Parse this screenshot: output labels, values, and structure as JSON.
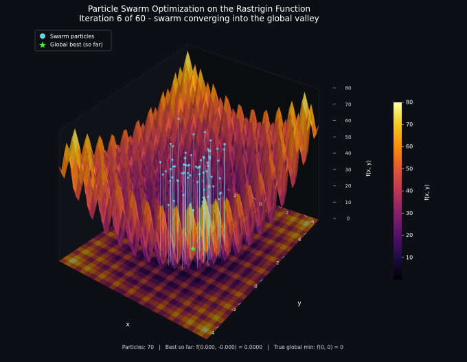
{
  "title_line1": "Particle Swarm Optimization on the Rastrigin Function",
  "title_line2": "Iteration 6 of 60 - swarm converging into the global valley",
  "legend": {
    "position": "top-left",
    "items": [
      {
        "label": "Swarm particles",
        "color": "#5ad8f0",
        "marker": "circle"
      },
      {
        "label": "Global best (so far)",
        "color": "#4cf03a",
        "marker": "star"
      }
    ]
  },
  "footer": "Particles: 70   |   Best so far: f(0.000, -0.000) = 0.0000   |   True global min: f(0, 0) = 0",
  "chart_data": {
    "type": "surface",
    "function": "Rastrigin",
    "xlabel": "x",
    "ylabel": "y",
    "zlabel": "f(x, y)",
    "xlim": [
      -5.12,
      5.12
    ],
    "ylim": [
      -5.12,
      5.12
    ],
    "zlim": [
      0,
      80
    ],
    "x_ticks": [
      "-4",
      "-2",
      "0",
      "2",
      "4"
    ],
    "y_ticks": [
      "-4",
      "-2",
      "0",
      "2",
      "4"
    ],
    "z_ticks": [
      "0",
      "10",
      "20",
      "30",
      "40",
      "50",
      "60",
      "70",
      "80"
    ],
    "colorbar": {
      "label": "f(x, y)",
      "min": 0,
      "max": 80,
      "ticks": [
        "10",
        "20",
        "30",
        "40",
        "50",
        "60",
        "70",
        "80"
      ],
      "colormap": "inferno"
    },
    "iteration": 6,
    "total_iterations": 60,
    "particle_count": 70,
    "best_position": [
      0.0,
      -0.0
    ],
    "best_value": 0.0,
    "global_minimum": {
      "x": 0,
      "y": 0,
      "f": 0
    }
  },
  "colors": {
    "background": "#0d0f14",
    "particles": "#5ad8f0",
    "best": "#4cf03a"
  }
}
